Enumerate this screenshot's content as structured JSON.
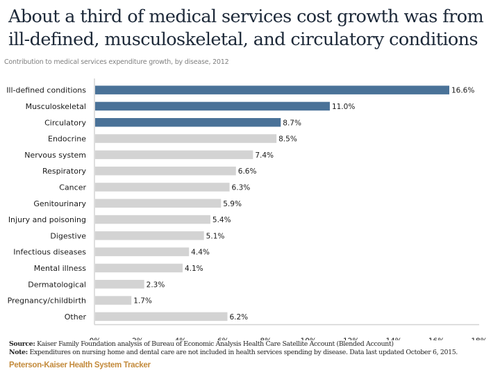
{
  "chart_data": {
    "type": "bar",
    "orientation": "horizontal",
    "title": "About a third of medical services cost growth was from ill-defined, musculoskeletal, and circulatory conditions",
    "subtitle": "Contribution to medical services expenditure growth, by disease, 2012",
    "xlabel": "",
    "ylabel": "",
    "xlim": [
      0,
      18
    ],
    "x_ticks": [
      "0%",
      "2%",
      "4%",
      "6%",
      "8%",
      "10%",
      "12%",
      "14%",
      "16%",
      "18%"
    ],
    "grid": false,
    "categories": [
      "Ill-defined conditions",
      "Musculoskeletal",
      "Circulatory",
      "Endocrine",
      "Nervous system",
      "Respiratory",
      "Cancer",
      "Genitourinary",
      "Injury and poisoning",
      "Digestive",
      "Infectious diseases",
      "Mental illness",
      "Dermatological",
      "Pregnancy/childbirth",
      "Other"
    ],
    "values": [
      16.6,
      11.0,
      8.7,
      8.5,
      7.4,
      6.6,
      6.3,
      5.9,
      5.4,
      5.1,
      4.4,
      4.1,
      2.3,
      1.7,
      6.2
    ],
    "data_labels": [
      "16.6%",
      "11.0%",
      "8.7%",
      "8.5%",
      "7.4%",
      "6.6%",
      "6.3%",
      "5.9%",
      "5.4%",
      "5.1%",
      "4.4%",
      "4.1%",
      "2.3%",
      "1.7%",
      "6.2%"
    ],
    "highlighted": [
      true,
      true,
      true,
      false,
      false,
      false,
      false,
      false,
      false,
      false,
      false,
      false,
      false,
      false,
      false
    ],
    "colors": {
      "highlight": "#4a7298",
      "default": "#d3d3d3",
      "axis": "#d3d3d3"
    }
  },
  "header": {
    "title_line1": "About a third of medical services cost growth was from",
    "title_line2": "ill-defined, musculoskeletal, and circulatory conditions",
    "subtitle": "Contribution to medical services expenditure growth, by disease, 2012"
  },
  "footer": {
    "source_label": "Source:",
    "source_text": "Kaiser Family Foundation analysis of Bureau of Economic Analysis Health Care Satellite Account (Blended Account)",
    "note_label": "Note:",
    "note_text": "Expenditures on nursing home and dental care are not included in health services spending by disease. Data last updated October 6, 2015.",
    "brand": "Peterson-Kaiser Health System Tracker"
  }
}
